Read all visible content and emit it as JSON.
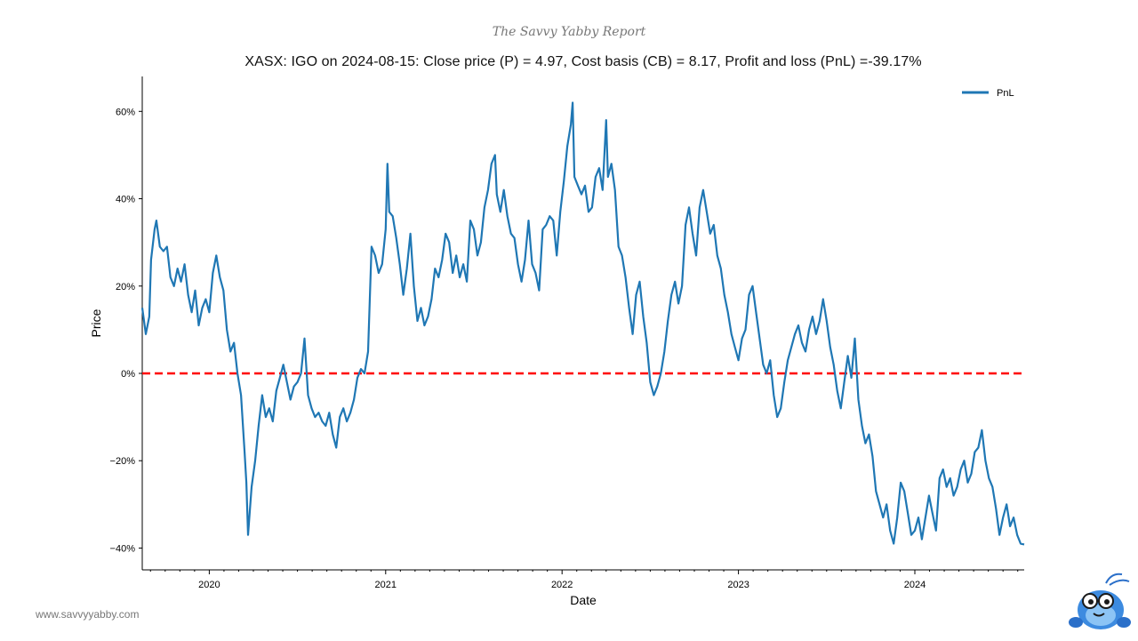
{
  "brand": "The Savvy Yabby Report",
  "website": "www.savvyyabby.com",
  "chart_data": {
    "type": "line",
    "title": "XASX: IGO on 2024-08-15: Close price (P) = 4.97, Cost basis (CB) = 8.17, Profit and loss (PnL) =-39.17%",
    "xlabel": "Date",
    "ylabel": "Price",
    "x_ticks": [
      "2020",
      "2021",
      "2022",
      "2023",
      "2024"
    ],
    "y_ticks": [
      {
        "value": 60,
        "label": "60%"
      },
      {
        "value": 40,
        "label": "40%"
      },
      {
        "value": 20,
        "label": "20%"
      },
      {
        "value": 0,
        "label": "0%"
      },
      {
        "value": -20,
        "label": "−20%"
      },
      {
        "value": -40,
        "label": "−40%"
      }
    ],
    "xlim": [
      2019.62,
      2024.62
    ],
    "ylim": [
      -45,
      68
    ],
    "legend": {
      "position": "top-right",
      "entries": [
        "PnL"
      ]
    },
    "reference_line": {
      "value": 0,
      "style": "dashed",
      "color": "#ff0000"
    },
    "series": [
      {
        "name": "PnL",
        "color": "#1f77b4",
        "points": [
          [
            2019.62,
            15
          ],
          [
            2019.64,
            9
          ],
          [
            2019.66,
            13
          ],
          [
            2019.67,
            26
          ],
          [
            2019.69,
            33
          ],
          [
            2019.7,
            35
          ],
          [
            2019.72,
            29
          ],
          [
            2019.74,
            28
          ],
          [
            2019.76,
            29
          ],
          [
            2019.78,
            22
          ],
          [
            2019.8,
            20
          ],
          [
            2019.82,
            24
          ],
          [
            2019.84,
            21
          ],
          [
            2019.86,
            25
          ],
          [
            2019.88,
            18
          ],
          [
            2019.9,
            14
          ],
          [
            2019.92,
            19
          ],
          [
            2019.94,
            11
          ],
          [
            2019.96,
            15
          ],
          [
            2019.98,
            17
          ],
          [
            2020.0,
            14
          ],
          [
            2020.02,
            23
          ],
          [
            2020.04,
            27
          ],
          [
            2020.06,
            22
          ],
          [
            2020.08,
            19
          ],
          [
            2020.1,
            10
          ],
          [
            2020.12,
            5
          ],
          [
            2020.14,
            7
          ],
          [
            2020.16,
            0
          ],
          [
            2020.18,
            -5
          ],
          [
            2020.2,
            -18
          ],
          [
            2020.21,
            -25
          ],
          [
            2020.22,
            -37
          ],
          [
            2020.24,
            -26
          ],
          [
            2020.26,
            -20
          ],
          [
            2020.28,
            -12
          ],
          [
            2020.3,
            -5
          ],
          [
            2020.32,
            -10
          ],
          [
            2020.34,
            -8
          ],
          [
            2020.36,
            -11
          ],
          [
            2020.38,
            -4
          ],
          [
            2020.4,
            -1
          ],
          [
            2020.42,
            2
          ],
          [
            2020.44,
            -2
          ],
          [
            2020.46,
            -6
          ],
          [
            2020.48,
            -3
          ],
          [
            2020.5,
            -2
          ],
          [
            2020.52,
            0
          ],
          [
            2020.54,
            8
          ],
          [
            2020.56,
            -5
          ],
          [
            2020.58,
            -8
          ],
          [
            2020.6,
            -10
          ],
          [
            2020.62,
            -9
          ],
          [
            2020.64,
            -11
          ],
          [
            2020.66,
            -12
          ],
          [
            2020.68,
            -9
          ],
          [
            2020.7,
            -14
          ],
          [
            2020.72,
            -17
          ],
          [
            2020.74,
            -10
          ],
          [
            2020.76,
            -8
          ],
          [
            2020.78,
            -11
          ],
          [
            2020.8,
            -9
          ],
          [
            2020.82,
            -6
          ],
          [
            2020.84,
            -1
          ],
          [
            2020.86,
            1
          ],
          [
            2020.88,
            0
          ],
          [
            2020.9,
            5
          ],
          [
            2020.92,
            29
          ],
          [
            2020.94,
            27
          ],
          [
            2020.96,
            23
          ],
          [
            2020.98,
            25
          ],
          [
            2021.0,
            33
          ],
          [
            2021.01,
            48
          ],
          [
            2021.02,
            37
          ],
          [
            2021.04,
            36
          ],
          [
            2021.06,
            31
          ],
          [
            2021.08,
            25
          ],
          [
            2021.1,
            18
          ],
          [
            2021.12,
            24
          ],
          [
            2021.14,
            32
          ],
          [
            2021.16,
            20
          ],
          [
            2021.18,
            12
          ],
          [
            2021.2,
            15
          ],
          [
            2021.22,
            11
          ],
          [
            2021.24,
            13
          ],
          [
            2021.26,
            17
          ],
          [
            2021.28,
            24
          ],
          [
            2021.3,
            22
          ],
          [
            2021.32,
            26
          ],
          [
            2021.34,
            32
          ],
          [
            2021.36,
            30
          ],
          [
            2021.38,
            23
          ],
          [
            2021.4,
            27
          ],
          [
            2021.42,
            22
          ],
          [
            2021.44,
            25
          ],
          [
            2021.46,
            21
          ],
          [
            2021.48,
            35
          ],
          [
            2021.5,
            33
          ],
          [
            2021.52,
            27
          ],
          [
            2021.54,
            30
          ],
          [
            2021.56,
            38
          ],
          [
            2021.58,
            42
          ],
          [
            2021.6,
            48
          ],
          [
            2021.62,
            50
          ],
          [
            2021.63,
            41
          ],
          [
            2021.65,
            37
          ],
          [
            2021.67,
            42
          ],
          [
            2021.69,
            36
          ],
          [
            2021.71,
            32
          ],
          [
            2021.73,
            31
          ],
          [
            2021.75,
            25
          ],
          [
            2021.77,
            21
          ],
          [
            2021.79,
            26
          ],
          [
            2021.81,
            35
          ],
          [
            2021.83,
            25
          ],
          [
            2021.85,
            23
          ],
          [
            2021.87,
            19
          ],
          [
            2021.89,
            33
          ],
          [
            2021.91,
            34
          ],
          [
            2021.93,
            36
          ],
          [
            2021.95,
            35
          ],
          [
            2021.97,
            27
          ],
          [
            2021.99,
            37
          ],
          [
            2022.01,
            44
          ],
          [
            2022.03,
            52
          ],
          [
            2022.05,
            57
          ],
          [
            2022.06,
            62
          ],
          [
            2022.07,
            45
          ],
          [
            2022.09,
            43
          ],
          [
            2022.11,
            41
          ],
          [
            2022.13,
            43
          ],
          [
            2022.15,
            37
          ],
          [
            2022.17,
            38
          ],
          [
            2022.19,
            45
          ],
          [
            2022.21,
            47
          ],
          [
            2022.23,
            42
          ],
          [
            2022.25,
            58
          ],
          [
            2022.26,
            45
          ],
          [
            2022.28,
            48
          ],
          [
            2022.3,
            42
          ],
          [
            2022.32,
            29
          ],
          [
            2022.34,
            27
          ],
          [
            2022.36,
            22
          ],
          [
            2022.38,
            15
          ],
          [
            2022.4,
            9
          ],
          [
            2022.42,
            18
          ],
          [
            2022.44,
            21
          ],
          [
            2022.46,
            13
          ],
          [
            2022.48,
            7
          ],
          [
            2022.5,
            -2
          ],
          [
            2022.52,
            -5
          ],
          [
            2022.54,
            -3
          ],
          [
            2022.56,
            0
          ],
          [
            2022.58,
            5
          ],
          [
            2022.6,
            12
          ],
          [
            2022.62,
            18
          ],
          [
            2022.64,
            21
          ],
          [
            2022.66,
            16
          ],
          [
            2022.68,
            20
          ],
          [
            2022.7,
            34
          ],
          [
            2022.72,
            38
          ],
          [
            2022.74,
            32
          ],
          [
            2022.76,
            27
          ],
          [
            2022.78,
            38
          ],
          [
            2022.8,
            42
          ],
          [
            2022.82,
            37
          ],
          [
            2022.84,
            32
          ],
          [
            2022.86,
            34
          ],
          [
            2022.88,
            27
          ],
          [
            2022.9,
            24
          ],
          [
            2022.92,
            18
          ],
          [
            2022.94,
            14
          ],
          [
            2022.96,
            9
          ],
          [
            2022.98,
            6
          ],
          [
            2023.0,
            3
          ],
          [
            2023.02,
            8
          ],
          [
            2023.04,
            10
          ],
          [
            2023.06,
            18
          ],
          [
            2023.08,
            20
          ],
          [
            2023.1,
            14
          ],
          [
            2023.12,
            8
          ],
          [
            2023.14,
            2
          ],
          [
            2023.16,
            0
          ],
          [
            2023.18,
            3
          ],
          [
            2023.2,
            -5
          ],
          [
            2023.22,
            -10
          ],
          [
            2023.24,
            -8
          ],
          [
            2023.26,
            -2
          ],
          [
            2023.28,
            3
          ],
          [
            2023.3,
            6
          ],
          [
            2023.32,
            9
          ],
          [
            2023.34,
            11
          ],
          [
            2023.36,
            7
          ],
          [
            2023.38,
            5
          ],
          [
            2023.4,
            10
          ],
          [
            2023.42,
            13
          ],
          [
            2023.44,
            9
          ],
          [
            2023.46,
            12
          ],
          [
            2023.48,
            17
          ],
          [
            2023.5,
            12
          ],
          [
            2023.52,
            6
          ],
          [
            2023.54,
            2
          ],
          [
            2023.56,
            -4
          ],
          [
            2023.58,
            -8
          ],
          [
            2023.6,
            -2
          ],
          [
            2023.62,
            4
          ],
          [
            2023.64,
            -1
          ],
          [
            2023.66,
            8
          ],
          [
            2023.68,
            -6
          ],
          [
            2023.7,
            -12
          ],
          [
            2023.72,
            -16
          ],
          [
            2023.74,
            -14
          ],
          [
            2023.76,
            -19
          ],
          [
            2023.78,
            -27
          ],
          [
            2023.8,
            -30
          ],
          [
            2023.82,
            -33
          ],
          [
            2023.84,
            -30
          ],
          [
            2023.86,
            -36
          ],
          [
            2023.88,
            -39
          ],
          [
            2023.9,
            -33
          ],
          [
            2023.92,
            -25
          ],
          [
            2023.94,
            -27
          ],
          [
            2023.96,
            -32
          ],
          [
            2023.98,
            -37
          ],
          [
            2024.0,
            -36
          ],
          [
            2024.02,
            -33
          ],
          [
            2024.04,
            -38
          ],
          [
            2024.06,
            -33
          ],
          [
            2024.08,
            -28
          ],
          [
            2024.1,
            -32
          ],
          [
            2024.12,
            -36
          ],
          [
            2024.14,
            -24
          ],
          [
            2024.16,
            -22
          ],
          [
            2024.18,
            -26
          ],
          [
            2024.2,
            -24
          ],
          [
            2024.22,
            -28
          ],
          [
            2024.24,
            -26
          ],
          [
            2024.26,
            -22
          ],
          [
            2024.28,
            -20
          ],
          [
            2024.3,
            -25
          ],
          [
            2024.32,
            -23
          ],
          [
            2024.34,
            -18
          ],
          [
            2024.36,
            -17
          ],
          [
            2024.38,
            -13
          ],
          [
            2024.4,
            -20
          ],
          [
            2024.42,
            -24
          ],
          [
            2024.44,
            -26
          ],
          [
            2024.46,
            -31
          ],
          [
            2024.48,
            -37
          ],
          [
            2024.5,
            -33
          ],
          [
            2024.52,
            -30
          ],
          [
            2024.54,
            -35
          ],
          [
            2024.56,
            -33
          ],
          [
            2024.58,
            -37
          ],
          [
            2024.6,
            -39
          ],
          [
            2024.62,
            -39.17
          ]
        ]
      }
    ]
  }
}
